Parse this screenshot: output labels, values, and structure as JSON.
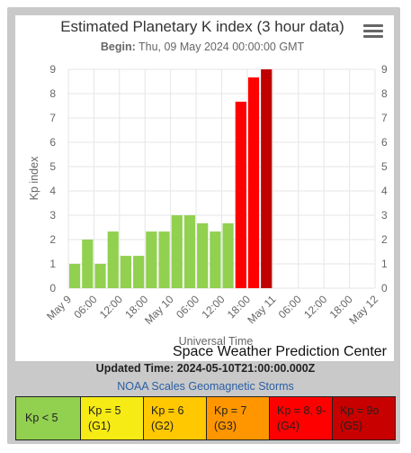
{
  "chart_data": {
    "type": "bar",
    "title": "Estimated Planetary K index (3 hour data)",
    "subtitle_label": "Begin:",
    "subtitle_value": " Thu, 09 May 2024 00:00:00 GMT",
    "ylabel": "Kp index",
    "xlabel": "Universal Time",
    "ylim": [
      0,
      9
    ],
    "yticks": [
      "0",
      "1",
      "2",
      "3",
      "4",
      "5",
      "6",
      "7",
      "8",
      "9"
    ],
    "xticks": [
      "May 9",
      "06:00",
      "12:00",
      "18:00",
      "May 10",
      "06:00",
      "12:00",
      "18:00",
      "May 11",
      "06:00",
      "12:00",
      "18:00",
      "May 12"
    ],
    "values": [
      1.0,
      2.0,
      1.0,
      2.33,
      1.33,
      1.33,
      2.33,
      2.33,
      3.0,
      3.0,
      2.67,
      2.33,
      2.67,
      7.67,
      8.67,
      9.0
    ],
    "bar_colors": {
      "green": "#92d050",
      "red": "#ff0000",
      "dark_red": "#c00000"
    },
    "credit": "Space Weather Prediction Center"
  },
  "footer": {
    "updated": "Updated Time: 2024-05-10T21:00:00.000Z",
    "scales_link": "NOAA Scales Geomagnetic Storms"
  },
  "legend": [
    {
      "line1": "Kp < 5",
      "line2": "",
      "color": "#92d050"
    },
    {
      "line1": "Kp = 5",
      "line2": "(G1)",
      "color": "#f6eb14"
    },
    {
      "line1": "Kp = 6",
      "line2": "(G2)",
      "color": "#ffc800"
    },
    {
      "line1": "Kp = 7",
      "line2": "(G3)",
      "color": "#ff9600"
    },
    {
      "line1": "Kp = 8, 9-",
      "line2": "(G4)",
      "color": "#ff0000"
    },
    {
      "line1": "Kp = 9o",
      "line2": "(G5)",
      "color": "#c80000"
    }
  ],
  "menu_icon": "hamburger-menu-icon"
}
